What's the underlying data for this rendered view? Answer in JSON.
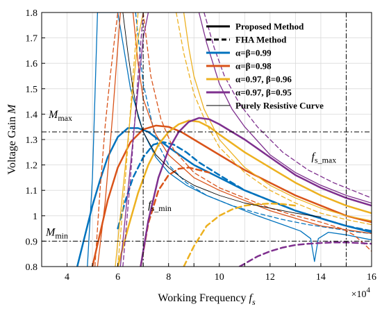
{
  "chart_data": {
    "type": "line",
    "xlabel": "Working Frequency f",
    "xlabel_sub": "s",
    "x_exponent_base": "×10",
    "x_exponent_power": "4",
    "ylabel": "Voltage Gain M",
    "xlim": [
      3,
      16
    ],
    "ylim": [
      0.8,
      1.8
    ],
    "x_ticks": [
      4,
      6,
      8,
      10,
      12,
      14,
      16
    ],
    "y_ticks": [
      0.8,
      0.9,
      1,
      1.1,
      1.2,
      1.3,
      1.4,
      1.5,
      1.6,
      1.7,
      1.8
    ],
    "y_tick_labels": [
      "0.8",
      "0.9",
      "1",
      "1.1",
      "1.2",
      "1.3",
      "1.4",
      "1.5",
      "1.6",
      "1.7",
      "1.8"
    ],
    "grid": true,
    "legend_position": "top-right",
    "legend": [
      {
        "label": "Proposed Method",
        "color": "#000000",
        "style": "solid"
      },
      {
        "label": "FHA Method",
        "color": "#000000",
        "style": "dashed"
      },
      {
        "label": "α=β=0.99",
        "color": "#0072BD",
        "style": "solid"
      },
      {
        "label": "α=β=0.98",
        "color": "#D95319",
        "style": "solid"
      },
      {
        "label": "α=0.97, β=0.96",
        "color": "#EDB120",
        "style": "solid"
      },
      {
        "label": "α=0.97, β=0.95",
        "color": "#7E2F8E",
        "style": "solid"
      },
      {
        "label": "Purely Resistive Curve",
        "color": "#000000",
        "style": "thin"
      }
    ],
    "reference_lines": {
      "horizontal": [
        {
          "y": 1.33,
          "label": "M",
          "sub": "max"
        },
        {
          "y": 0.9,
          "label": "M",
          "sub": "min"
        }
      ],
      "vertical": [
        {
          "x": 7,
          "label": "f",
          "sub": "s_min"
        },
        {
          "x": 15,
          "label": "f",
          "sub": "s_max"
        }
      ]
    },
    "series": [
      {
        "name": "α=β=0.99",
        "group": "α=β=0.99",
        "method": "Proposed Method",
        "load": "heavy",
        "color": "#0072BD",
        "dash": false,
        "width": 2.5,
        "x": [
          4.4,
          4.6,
          4.8,
          5.0,
          5.3,
          5.6,
          6.0,
          6.4,
          6.8,
          7.2,
          7.6,
          8.0,
          9.0,
          10.0,
          11.0,
          12.0,
          13.0,
          14.0,
          15.0,
          16.0
        ],
        "y": [
          0.8,
          0.88,
          0.96,
          1.04,
          1.14,
          1.23,
          1.31,
          1.345,
          1.345,
          1.33,
          1.3,
          1.27,
          1.2,
          1.15,
          1.1,
          1.06,
          1.02,
          0.99,
          0.96,
          0.935
        ]
      },
      {
        "name": "α=β=0.99",
        "group": "α=β=0.99",
        "method": "FHA Method",
        "load": "heavy",
        "color": "#0072BD",
        "dash": true,
        "width": 2.5,
        "x": [
          6.0,
          6.3,
          6.6,
          7.0,
          7.4,
          7.8,
          8.2,
          8.7,
          9.2,
          10.0,
          11.0,
          12.0,
          13.0,
          14.0,
          15.0,
          16.0
        ],
        "y": [
          0.95,
          1.06,
          1.15,
          1.23,
          1.28,
          1.29,
          1.28,
          1.25,
          1.21,
          1.16,
          1.1,
          1.06,
          1.02,
          0.99,
          0.96,
          0.94
        ]
      },
      {
        "name": "α=β=0.99",
        "group": "α=β=0.99",
        "method": "Proposed Method",
        "load": "light",
        "color": "#0072BD",
        "dash": false,
        "width": 1.3,
        "x": [
          4.8,
          5.0,
          5.2,
          5.6,
          6.0,
          6.5,
          7.0,
          7.5,
          8.0,
          8.7,
          9.5,
          10.5,
          11.5,
          12.5,
          13.2,
          13.6,
          13.75,
          13.9,
          14.3,
          15.0,
          16.0
        ],
        "y": [
          0.8,
          1.15,
          1.8,
          1.8,
          1.8,
          1.5,
          1.33,
          1.23,
          1.17,
          1.12,
          1.08,
          1.04,
          1.0,
          0.965,
          0.94,
          0.91,
          0.82,
          0.91,
          0.935,
          0.925,
          0.905
        ]
      },
      {
        "name": "α=β=0.99",
        "group": "α=β=0.99",
        "method": "FHA Method",
        "load": "light",
        "color": "#0072BD",
        "dash": true,
        "width": 1.3,
        "x": [
          6.7,
          7.0,
          7.5,
          8.0,
          8.7,
          9.5,
          10.5,
          11.5,
          12.5,
          13.5,
          14.5,
          15.5,
          16.0
        ],
        "y": [
          1.8,
          1.52,
          1.3,
          1.2,
          1.13,
          1.08,
          1.04,
          1.01,
          0.985,
          0.965,
          0.95,
          0.935,
          0.93
        ]
      },
      {
        "name": "α=β=0.98",
        "group": "α=β=0.98",
        "method": "Proposed Method",
        "load": "heavy",
        "color": "#D95319",
        "dash": false,
        "width": 2.5,
        "x": [
          5.0,
          5.3,
          5.6,
          6.0,
          6.5,
          7.0,
          7.5,
          8.0,
          8.5,
          9.0,
          10.0,
          11.0,
          12.0,
          13.0,
          14.0,
          15.0,
          16.0
        ],
        "y": [
          0.8,
          0.93,
          1.06,
          1.19,
          1.29,
          1.34,
          1.355,
          1.35,
          1.33,
          1.3,
          1.24,
          1.18,
          1.13,
          1.08,
          1.04,
          1.0,
          0.975
        ]
      },
      {
        "name": "α=β=0.98",
        "group": "α=β=0.98",
        "method": "FHA Method",
        "load": "heavy",
        "color": "#D95319",
        "dash": true,
        "width": 2.5,
        "x": [
          6.9,
          7.2,
          7.6,
          8.0,
          8.4,
          8.8,
          9.2,
          9.6
        ],
        "y": [
          0.8,
          0.97,
          1.1,
          1.16,
          1.185,
          1.19,
          1.18,
          1.17
        ]
      },
      {
        "name": "α=β=0.98",
        "group": "α=β=0.98",
        "method": "Proposed Method",
        "load": "light",
        "color": "#D95319",
        "dash": false,
        "width": 1.3,
        "x": [
          5.2,
          5.5,
          5.8,
          6.1,
          6.4,
          6.6,
          6.8,
          7.0,
          7.5,
          8.0,
          9.0,
          10.0,
          11.0,
          12.0,
          13.0,
          14.0,
          15.0,
          16.0
        ],
        "y": [
          0.8,
          1.05,
          1.4,
          1.8,
          1.8,
          1.8,
          1.6,
          1.46,
          1.32,
          1.24,
          1.15,
          1.1,
          1.06,
          1.02,
          0.99,
          0.96,
          0.945,
          0.93
        ]
      },
      {
        "name": "α=β=0.98",
        "group": "α=β=0.98",
        "method": "FHA Method",
        "load": "light",
        "color": "#D95319",
        "dash": true,
        "width": 1.3,
        "x": [
          5.1,
          5.3,
          5.5,
          5.7,
          5.9,
          6.0
        ],
        "y": [
          0.8,
          1.1,
          1.35,
          1.55,
          1.72,
          1.8
        ]
      },
      {
        "name": "α=β=0.98",
        "group": "α=β=0.98",
        "method": "FHA Method",
        "load": "light",
        "color": "#D95319",
        "dash": true,
        "width": 1.3,
        "x": [
          7.0,
          7.3,
          7.7,
          8.2,
          9.0,
          10.0,
          11.0,
          12.0,
          13.0,
          14.0,
          14.8,
          15.3,
          15.7,
          16.0
        ],
        "y": [
          1.8,
          1.55,
          1.38,
          1.26,
          1.17,
          1.11,
          1.07,
          1.03,
          1.0,
          0.975,
          0.95,
          0.925,
          0.89,
          0.86
        ]
      },
      {
        "name": "α=0.97, β=0.96",
        "group": "α=0.97, β=0.96",
        "method": "Proposed Method",
        "load": "heavy",
        "color": "#EDB120",
        "dash": false,
        "width": 2.5,
        "x": [
          6.0,
          6.4,
          6.8,
          7.2,
          7.6,
          8.0,
          8.4,
          8.8,
          9.2,
          9.6,
          10.0,
          11.0,
          12.0,
          13.0,
          14.0,
          15.0,
          16.0
        ],
        "y": [
          0.8,
          0.95,
          1.09,
          1.2,
          1.28,
          1.33,
          1.36,
          1.375,
          1.37,
          1.35,
          1.32,
          1.25,
          1.19,
          1.13,
          1.08,
          1.04,
          1.01
        ]
      },
      {
        "name": "α=0.97, β=0.96",
        "group": "α=0.97, β=0.96",
        "method": "FHA Method",
        "load": "heavy",
        "color": "#EDB120",
        "dash": true,
        "width": 2.5,
        "x": [
          8.6,
          9.0,
          9.5,
          10.0,
          10.5,
          11.0,
          11.5,
          12.0,
          12.5,
          13.0
        ],
        "y": [
          0.8,
          0.88,
          0.96,
          1.0,
          1.025,
          1.04,
          1.045,
          1.048,
          1.046,
          1.04
        ]
      },
      {
        "name": "α=0.97, β=0.96",
        "group": "α=0.97, β=0.96",
        "method": "Proposed Method",
        "load": "light",
        "color": "#EDB120",
        "dash": false,
        "width": 1.3,
        "x": [
          5.9,
          6.2,
          6.5,
          6.8,
          7.0
        ],
        "y": [
          0.8,
          1.1,
          1.4,
          1.7,
          1.8
        ]
      },
      {
        "name": "α=0.97, β=0.96",
        "group": "α=0.97, β=0.96",
        "method": "Proposed Method",
        "load": "light",
        "color": "#EDB120",
        "dash": false,
        "width": 1.3,
        "x": [
          8.6,
          8.8,
          9.0,
          9.4,
          10.0,
          11.0,
          12.0,
          13.0,
          14.0,
          15.0,
          16.0
        ],
        "y": [
          1.8,
          1.66,
          1.55,
          1.42,
          1.3,
          1.19,
          1.12,
          1.07,
          1.03,
          1.0,
          0.98
        ]
      },
      {
        "name": "α=0.97, β=0.96",
        "group": "α=0.97, β=0.96",
        "method": "FHA Method",
        "load": "light",
        "color": "#EDB120",
        "dash": true,
        "width": 1.3,
        "x": [
          6.0,
          6.3,
          6.6,
          6.8
        ],
        "y": [
          0.8,
          1.15,
          1.55,
          1.8
        ]
      },
      {
        "name": "α=0.97, β=0.96",
        "group": "α=0.97, β=0.96",
        "method": "FHA Method",
        "load": "light",
        "color": "#EDB120",
        "dash": true,
        "width": 1.3,
        "x": [
          8.3,
          8.6,
          9.0,
          9.5,
          10.0,
          11.0,
          12.0,
          13.0,
          14.0,
          15.0,
          16.0
        ],
        "y": [
          1.8,
          1.64,
          1.48,
          1.36,
          1.27,
          1.17,
          1.1,
          1.05,
          1.01,
          0.985,
          0.965
        ]
      },
      {
        "name": "α=0.97, β=0.95",
        "group": "α=0.97, β=0.95",
        "method": "Proposed Method",
        "load": "heavy",
        "color": "#7E2F8E",
        "dash": false,
        "width": 2.5,
        "x": [
          6.9,
          7.2,
          7.6,
          8.0,
          8.4,
          8.8,
          9.2,
          9.6,
          10.0,
          11.0,
          12.0,
          13.0,
          14.0,
          15.0,
          16.0
        ],
        "y": [
          0.8,
          0.98,
          1.15,
          1.26,
          1.33,
          1.37,
          1.385,
          1.38,
          1.36,
          1.3,
          1.23,
          1.16,
          1.11,
          1.07,
          1.04
        ]
      },
      {
        "name": "α=0.97, β=0.95",
        "group": "α=0.97, β=0.95",
        "method": "FHA Method",
        "load": "heavy",
        "color": "#7E2F8E",
        "dash": true,
        "width": 2.5,
        "x": [
          10.8,
          11.5,
          12.0,
          12.5,
          13.0,
          13.5,
          14.0,
          14.5,
          15.0,
          15.5,
          16.0
        ],
        "y": [
          0.8,
          0.84,
          0.86,
          0.875,
          0.885,
          0.89,
          0.893,
          0.895,
          0.895,
          0.893,
          0.89
        ]
      },
      {
        "name": "α=0.97, β=0.95",
        "group": "α=0.97, β=0.95",
        "method": "Proposed Method",
        "load": "light",
        "color": "#7E2F8E",
        "dash": false,
        "width": 1.3,
        "x": [
          6.1,
          6.4,
          6.7,
          7.0,
          7.2
        ],
        "y": [
          0.8,
          1.1,
          1.4,
          1.7,
          1.8
        ]
      },
      {
        "name": "α=0.97, β=0.95",
        "group": "α=0.97, β=0.95",
        "method": "Proposed Method",
        "load": "light",
        "color": "#7E2F8E",
        "dash": false,
        "width": 1.3,
        "x": [
          9.2,
          9.5,
          10.0,
          10.5,
          11.0,
          12.0,
          13.0,
          14.0,
          15.0,
          16.0
        ],
        "y": [
          1.8,
          1.68,
          1.52,
          1.42,
          1.35,
          1.24,
          1.17,
          1.12,
          1.08,
          1.05
        ]
      },
      {
        "name": "α=0.97, β=0.95",
        "group": "α=0.97, β=0.95",
        "method": "FHA Method",
        "load": "light",
        "color": "#7E2F8E",
        "dash": true,
        "width": 1.3,
        "x": [
          6.2,
          6.5,
          6.8,
          7.0
        ],
        "y": [
          0.8,
          1.15,
          1.55,
          1.8
        ]
      },
      {
        "name": "α=0.97, β=0.95",
        "group": "α=0.97, β=0.95",
        "method": "FHA Method",
        "load": "light",
        "color": "#7E2F8E",
        "dash": true,
        "width": 1.3,
        "x": [
          9.4,
          9.8,
          10.2,
          10.8,
          11.5,
          12.5,
          13.5,
          14.5,
          15.5,
          16.0
        ],
        "y": [
          1.8,
          1.66,
          1.55,
          1.44,
          1.35,
          1.25,
          1.18,
          1.13,
          1.09,
          1.07
        ]
      },
      {
        "name": "Purely Resistive Curve",
        "group": "Purely Resistive Curve",
        "method": "Purely Resistive Curve",
        "load": "none",
        "color": "#000000",
        "dash": false,
        "width": 0.9,
        "x": [
          6.2,
          6.4,
          6.6,
          6.8,
          7.0,
          7.5,
          8.0,
          8.5,
          9.0,
          9.5,
          10.0,
          11.0,
          12.0,
          13.0,
          14.0
        ],
        "y": [
          1.8,
          1.64,
          1.5,
          1.39,
          1.33,
          1.24,
          1.19,
          1.15,
          1.12,
          1.1,
          1.08,
          1.05,
          1.03,
          1.01,
          0.995
        ]
      }
    ]
  }
}
